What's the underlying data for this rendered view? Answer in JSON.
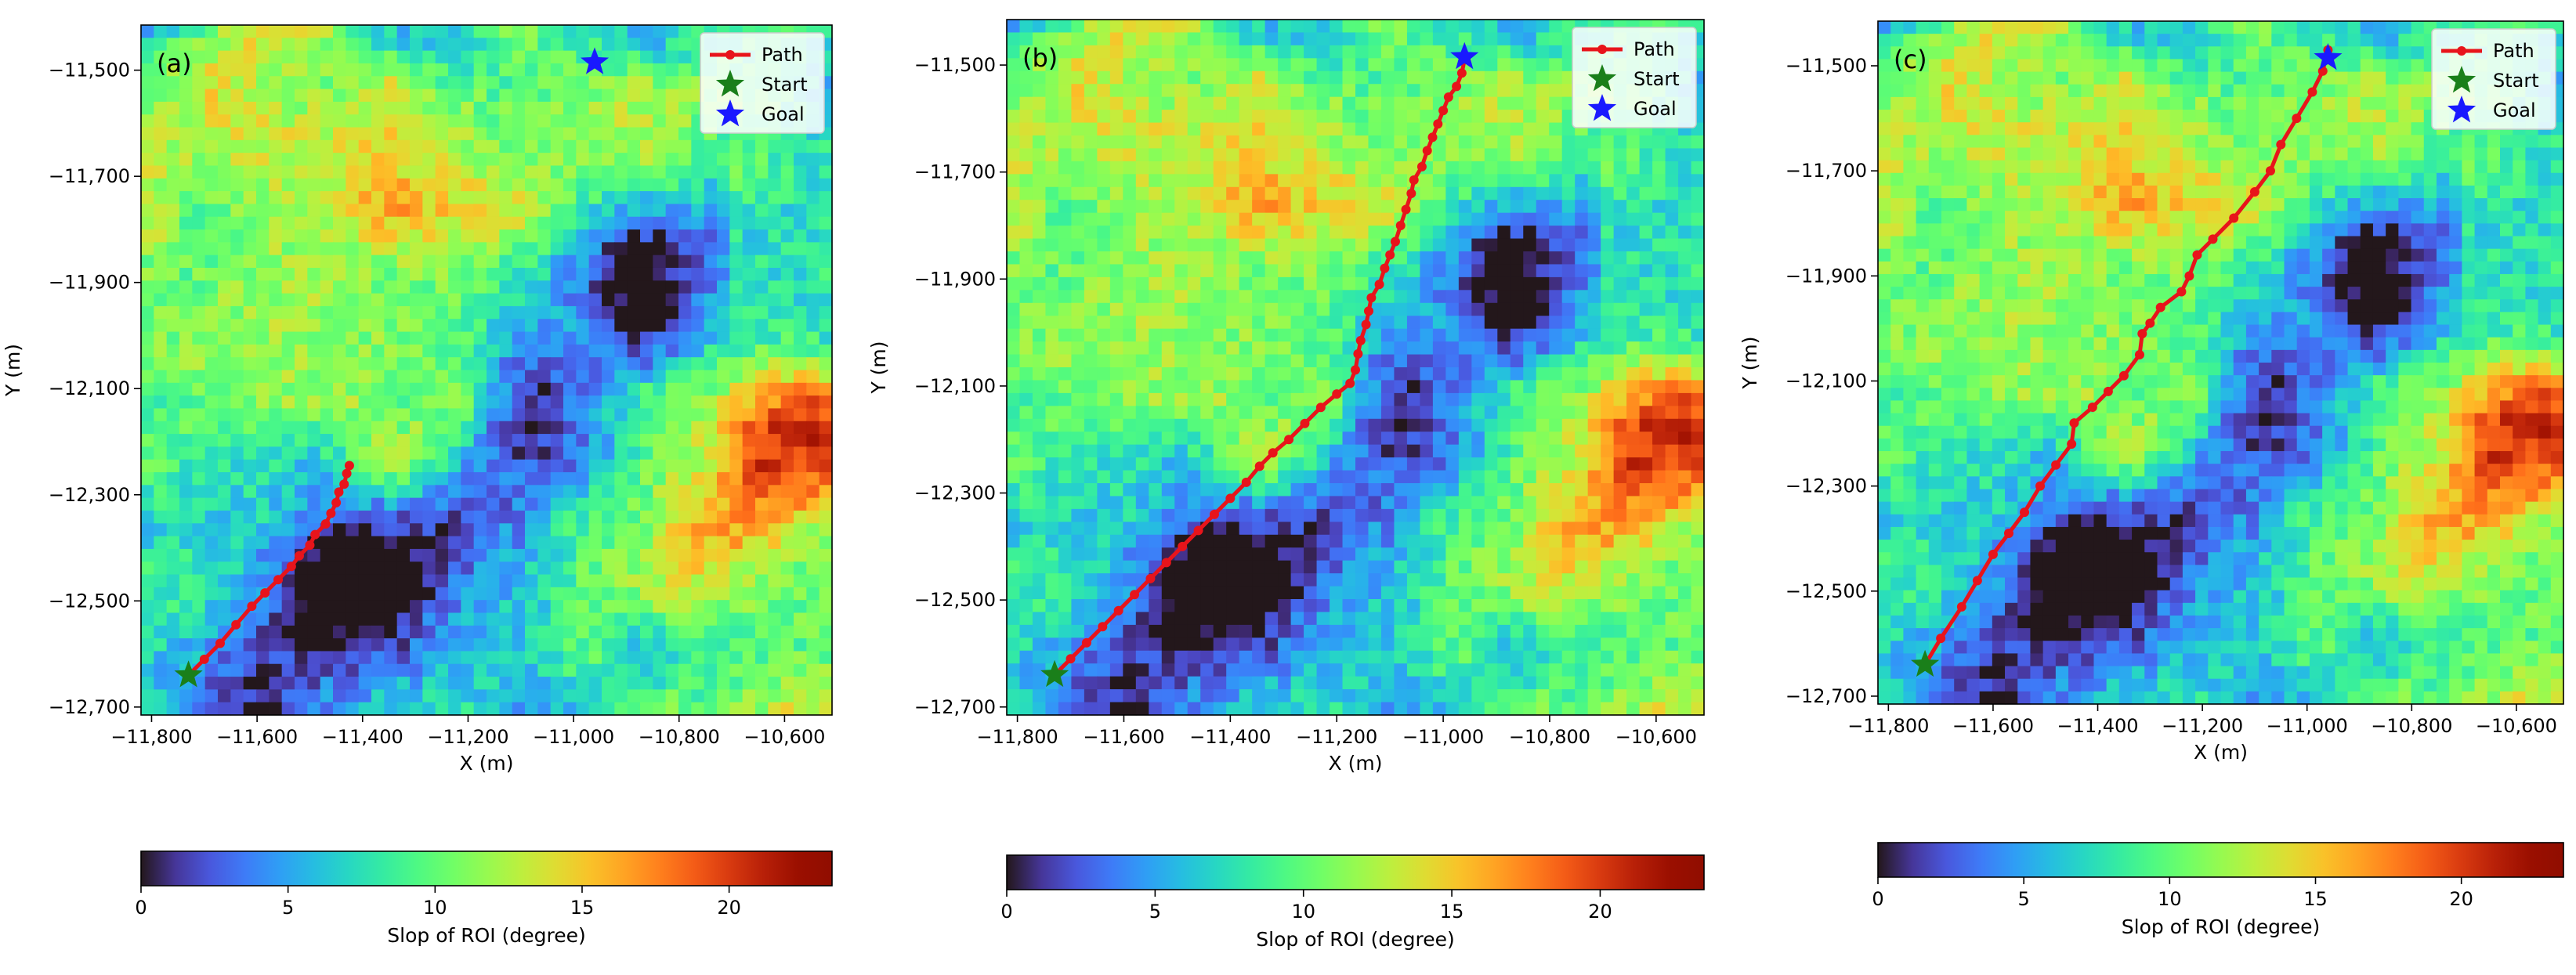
{
  "figure": {
    "colormap": "turbo",
    "colors": {
      "path": "#e8141b",
      "start": "#1a7f1a",
      "goal": "#1919ff",
      "axis": "#000000",
      "background": "#ffffff"
    }
  },
  "chart_data": [
    {
      "type": "heatmap",
      "panel_label": "(a)",
      "xlabel": "X (m)",
      "ylabel": "Y (m)",
      "xlim": [
        -11820,
        -10510
      ],
      "ylim": [
        -12715,
        -11415
      ],
      "xticks": [
        -11800,
        -11600,
        -11400,
        -11200,
        -11000,
        -10800,
        -10600
      ],
      "xtick_labels": [
        "−11,800",
        "−11,600",
        "−11,400",
        "−11,200",
        "−11,000",
        "−10,800",
        "−10,600"
      ],
      "yticks": [
        -11500,
        -11700,
        -11900,
        -12100,
        -12300,
        -12500,
        -12700
      ],
      "ytick_labels": [
        "−11,500",
        "−11,700",
        "−11,900",
        "−12,100",
        "−12,300",
        "−12,500",
        "−12,700"
      ],
      "legend": {
        "location": "upper right",
        "entries": [
          "Path",
          "Start",
          "Goal"
        ]
      },
      "start": [
        -11730,
        -12640
      ],
      "goal": [
        -10960,
        -11485
      ],
      "path": [
        [
          -11730,
          -12640
        ],
        [
          -11700,
          -12610
        ],
        [
          -11670,
          -12580
        ],
        [
          -11640,
          -12545
        ],
        [
          -11610,
          -12510
        ],
        [
          -11585,
          -12485
        ],
        [
          -11560,
          -12460
        ],
        [
          -11535,
          -12435
        ],
        [
          -11520,
          -12415
        ],
        [
          -11500,
          -12395
        ],
        [
          -11490,
          -12375
        ],
        [
          -11470,
          -12355
        ],
        [
          -11460,
          -12335
        ],
        [
          -11450,
          -12315
        ],
        [
          -11445,
          -12295
        ],
        [
          -11435,
          -12280
        ],
        [
          -11430,
          -12260
        ],
        [
          -11425,
          -12245
        ]
      ],
      "colorbar": {
        "label": "Slop of ROI (degree)",
        "range": [
          0,
          23.5
        ],
        "ticks": [
          0,
          5,
          10,
          15,
          20
        ],
        "tick_labels": [
          "0",
          "5",
          "10",
          "15",
          "20"
        ]
      }
    },
    {
      "type": "heatmap",
      "panel_label": "(b)",
      "xlabel": "X (m)",
      "ylabel": "Y (m)",
      "xlim": [
        -11820,
        -10510
      ],
      "ylim": [
        -12715,
        -11415
      ],
      "xticks": [
        -11800,
        -11600,
        -11400,
        -11200,
        -11000,
        -10800,
        -10600
      ],
      "xtick_labels": [
        "−11,800",
        "−11,600",
        "−11,400",
        "−11,200",
        "−11,000",
        "−10,800",
        "−10,600"
      ],
      "yticks": [
        -11500,
        -11700,
        -11900,
        -12100,
        -12300,
        -12500,
        -12700
      ],
      "ytick_labels": [
        "−11,500",
        "−11,700",
        "−11,900",
        "−12,100",
        "−12,300",
        "−12,500",
        "−12,700"
      ],
      "legend": {
        "location": "upper right",
        "entries": [
          "Path",
          "Start",
          "Goal"
        ]
      },
      "start": [
        -11730,
        -12640
      ],
      "goal": [
        -10960,
        -11485
      ],
      "path": [
        [
          -11730,
          -12640
        ],
        [
          -11700,
          -12610
        ],
        [
          -11670,
          -12580
        ],
        [
          -11640,
          -12550
        ],
        [
          -11610,
          -12520
        ],
        [
          -11580,
          -12490
        ],
        [
          -11550,
          -12460
        ],
        [
          -11520,
          -12430
        ],
        [
          -11490,
          -12400
        ],
        [
          -11460,
          -12370
        ],
        [
          -11430,
          -12340
        ],
        [
          -11400,
          -12310
        ],
        [
          -11370,
          -12280
        ],
        [
          -11345,
          -12250
        ],
        [
          -11320,
          -12225
        ],
        [
          -11290,
          -12200
        ],
        [
          -11260,
          -12170
        ],
        [
          -11230,
          -12140
        ],
        [
          -11200,
          -12115
        ],
        [
          -11175,
          -12095
        ],
        [
          -11165,
          -12070
        ],
        [
          -11160,
          -12040
        ],
        [
          -11155,
          -12015
        ],
        [
          -11145,
          -11985
        ],
        [
          -11140,
          -11960
        ],
        [
          -11135,
          -11935
        ],
        [
          -11120,
          -11910
        ],
        [
          -11110,
          -11880
        ],
        [
          -11100,
          -11855
        ],
        [
          -11090,
          -11830
        ],
        [
          -11080,
          -11800
        ],
        [
          -11070,
          -11770
        ],
        [
          -11060,
          -11740
        ],
        [
          -11055,
          -11715
        ],
        [
          -11040,
          -11690
        ],
        [
          -11030,
          -11660
        ],
        [
          -11020,
          -11635
        ],
        [
          -11010,
          -11610
        ],
        [
          -11000,
          -11585
        ],
        [
          -10990,
          -11560
        ],
        [
          -10975,
          -11540
        ],
        [
          -10965,
          -11515
        ],
        [
          -10960,
          -11490
        ]
      ],
      "colorbar": {
        "label": "Slop of ROI (degree)",
        "range": [
          0,
          23.5
        ],
        "ticks": [
          0,
          5,
          10,
          15,
          20
        ],
        "tick_labels": [
          "0",
          "5",
          "10",
          "15",
          "20"
        ]
      }
    },
    {
      "type": "heatmap",
      "panel_label": "(c)",
      "xlabel": "X (m)",
      "ylabel": "Y (m)",
      "xlim": [
        -11820,
        -10510
      ],
      "ylim": [
        -12715,
        -11415
      ],
      "xticks": [
        -11800,
        -11600,
        -11400,
        -11200,
        -11000,
        -10800,
        -10600
      ],
      "xtick_labels": [
        "−11,800",
        "−11,600",
        "−11,400",
        "−11,200",
        "−11,000",
        "−10,800",
        "−10,600"
      ],
      "yticks": [
        -11500,
        -11700,
        -11900,
        -12100,
        -12300,
        -12500,
        -12700
      ],
      "ytick_labels": [
        "−11,500",
        "−11,700",
        "−11,900",
        "−12,100",
        "−12,300",
        "−12,500",
        "−12,700"
      ],
      "legend": {
        "location": "upper right",
        "entries": [
          "Path",
          "Start",
          "Goal"
        ]
      },
      "start": [
        -11730,
        -12640
      ],
      "goal": [
        -10960,
        -11485
      ],
      "path": [
        [
          -11730,
          -12640
        ],
        [
          -11700,
          -12590
        ],
        [
          -11660,
          -12530
        ],
        [
          -11630,
          -12480
        ],
        [
          -11600,
          -12430
        ],
        [
          -11570,
          -12390
        ],
        [
          -11540,
          -12350
        ],
        [
          -11510,
          -12300
        ],
        [
          -11480,
          -12260
        ],
        [
          -11450,
          -12220
        ],
        [
          -11445,
          -12180
        ],
        [
          -11410,
          -12150
        ],
        [
          -11380,
          -12120
        ],
        [
          -11350,
          -12090
        ],
        [
          -11320,
          -12050
        ],
        [
          -11315,
          -12010
        ],
        [
          -11300,
          -11990
        ],
        [
          -11280,
          -11960
        ],
        [
          -11240,
          -11930
        ],
        [
          -11225,
          -11900
        ],
        [
          -11210,
          -11860
        ],
        [
          -11180,
          -11830
        ],
        [
          -11140,
          -11790
        ],
        [
          -11100,
          -11740
        ],
        [
          -11070,
          -11700
        ],
        [
          -11050,
          -11650
        ],
        [
          -11020,
          -11600
        ],
        [
          -10990,
          -11550
        ],
        [
          -10970,
          -11510
        ],
        [
          -10960,
          -11470
        ]
      ],
      "colorbar": {
        "label": "Slop of ROI (degree)",
        "range": [
          0,
          23.5
        ],
        "ticks": [
          0,
          5,
          10,
          15,
          20
        ],
        "tick_labels": [
          "0",
          "5",
          "10",
          "15",
          "20"
        ]
      }
    }
  ]
}
